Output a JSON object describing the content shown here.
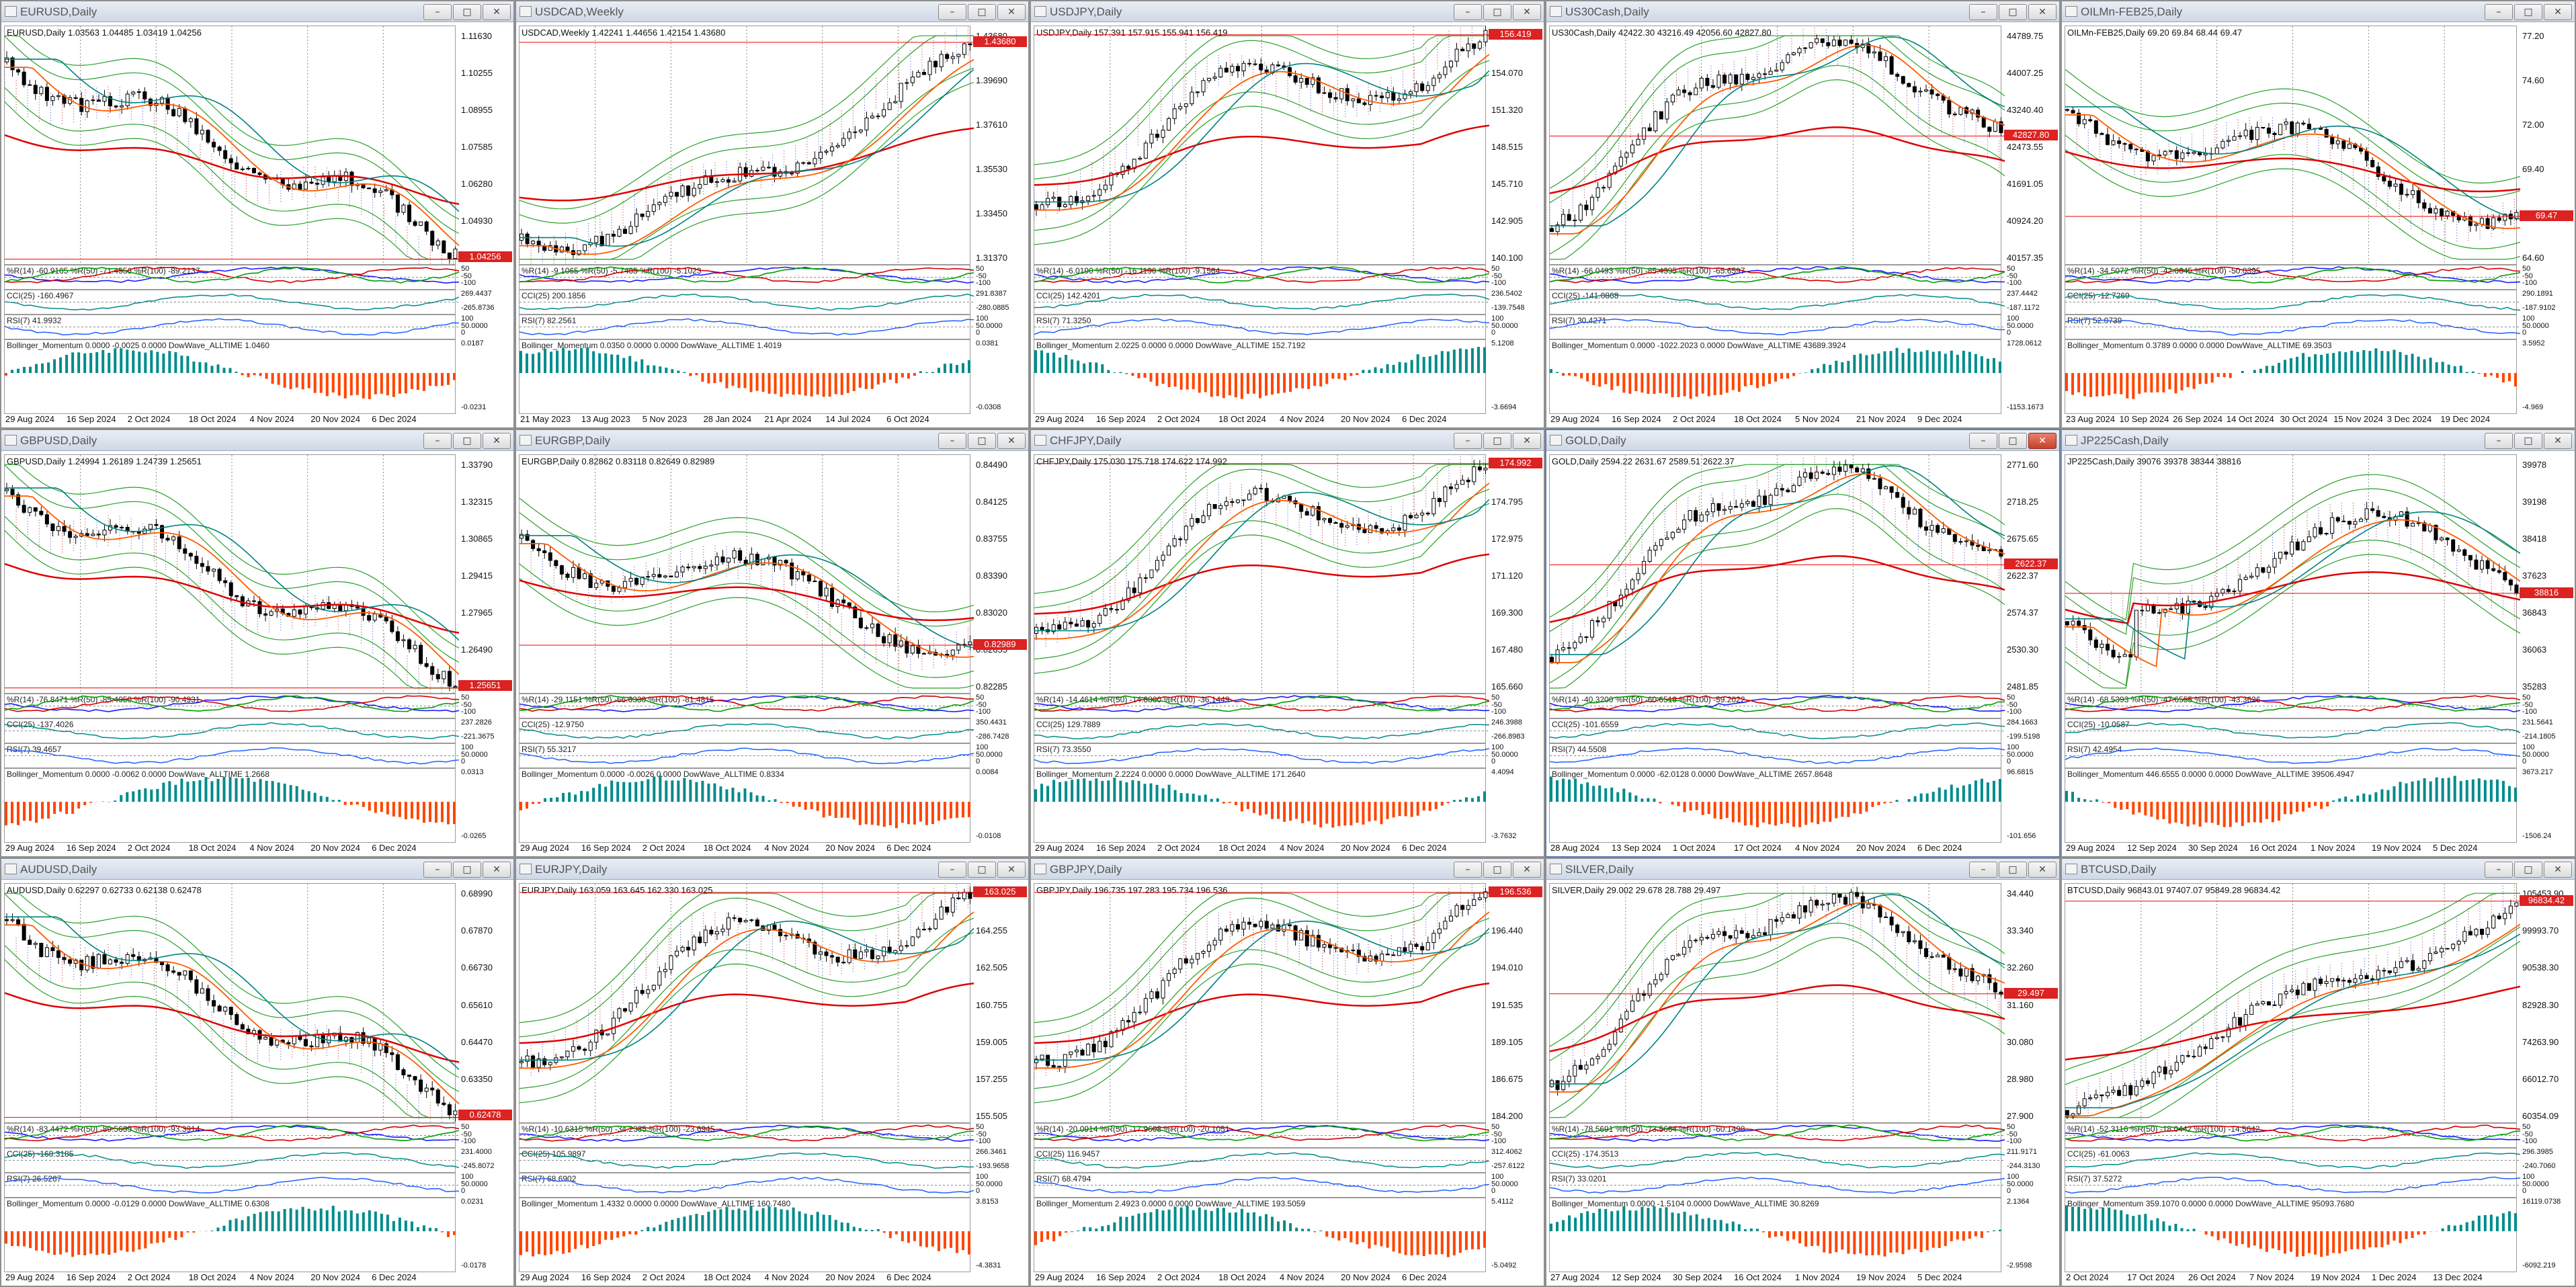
{
  "windows": [
    {
      "title": "EURUSD,Daily",
      "header": "EURUSD,Daily  1.03563 1.04485 1.03419 1.04256",
      "color": "#d22",
      "priceTag": "1.04256",
      "yLabels": [
        "1.11630",
        "1.10255",
        "1.08955",
        "1.07585",
        "1.06280",
        "1.04930",
        "1.03580"
      ],
      "ind1": "%R(14) -60.9165  %R(50) -71.4556  %R(100) -89.2137",
      "ind1Axis": [
        "50",
        "-50",
        "-100"
      ],
      "ind2": "CCI(25) -160.4967",
      "ind2Axis": [
        "269.4437",
        "-265.8736"
      ],
      "ind3": "RSI(7) 41.9932",
      "ind3Axis": [
        "100",
        "50.0000",
        "0"
      ],
      "ind4": "Bollinger_Momentum 0.0000 -0.0025 0.0000  DowWave_ALLTIME 1.0460",
      "ind4Axis": [
        "0.0187",
        "-0.0231"
      ],
      "xLabels": [
        "29 Aug 2024",
        "16 Sep 2024",
        "2 Oct 2024",
        "18 Oct 2024",
        "4 Nov 2024",
        "20 Nov 2024",
        "6 Dec 2024"
      ],
      "trend": "down",
      "active": false
    },
    {
      "title": "USDCAD,Weekly",
      "header": "USDCAD,Weekly  1.42241 1.44656 1.42154 1.43680",
      "color": "#d22",
      "priceTag": "1.43680",
      "yLabels": [
        "1.43680",
        "1.39690",
        "1.37610",
        "1.35530",
        "1.33450",
        "1.31370"
      ],
      "ind1": "%R(14) -9.1065  %R(50) -5.7485  %R(100) -5.1023",
      "ind1Axis": [
        "50",
        "-50",
        "-100"
      ],
      "ind2": "CCI(25) 200.1856",
      "ind2Axis": [
        "291.8387",
        "-280.0885"
      ],
      "ind3": "RSI(7) 82.2561",
      "ind3Axis": [
        "100",
        "50.0000",
        "0"
      ],
      "ind4": "Bollinger_Momentum 0.0350 0.0000 0.0000  DowWave_ALLTIME 1.4019",
      "ind4Axis": [
        "0.0381",
        "-0.0308"
      ],
      "xLabels": [
        "21 May 2023",
        "13 Aug 2023",
        "5 Nov 2023",
        "28 Jan 2024",
        "21 Apr 2024",
        "14 Jul 2024",
        "6 Oct 2024"
      ],
      "trend": "up",
      "active": false
    },
    {
      "title": "USDJPY,Daily",
      "header": "USDJPY,Daily  157.391 157.915 155.941 156.419",
      "color": "#d22",
      "priceTag": "156.419",
      "yLabels": [
        "157.890",
        "154.070",
        "151.320",
        "148.515",
        "145.710",
        "142.905",
        "140.100"
      ],
      "ind1": "%R(14) -6.0190  %R(50) -16.1190  %R(100) -9.1564",
      "ind1Axis": [
        "50",
        "-50",
        "-100"
      ],
      "ind2": "CCI(25) 142.4201",
      "ind2Axis": [
        "236.5402",
        "-139.7548"
      ],
      "ind3": "RSI(7) 71.3250",
      "ind3Axis": [
        "100",
        "50.0000",
        "0"
      ],
      "ind4": "Bollinger_Momentum 2.0225 0.0000 0.0000  DowWave_ALLTIME 152.7192",
      "ind4Axis": [
        "5.1208",
        "-3.6694"
      ],
      "xLabels": [
        "29 Aug 2024",
        "16 Sep 2024",
        "2 Oct 2024",
        "18 Oct 2024",
        "4 Nov 2024",
        "20 Nov 2024",
        "6 Dec 2024"
      ],
      "trend": "upmid",
      "active": false
    },
    {
      "title": "US30Cash,Daily",
      "header": "US30Cash,Daily  42422.30 43216.49 42056.60 42827.80",
      "color": "#d22",
      "priceTag": "42827.80",
      "yLabels": [
        "44789.75",
        "44007.25",
        "43240.40",
        "42473.55",
        "41691.05",
        "40924.20",
        "40157.35"
      ],
      "ind1": "%R(14) -66.0493  %R(50) -85.4395  %R(100) -65.6597",
      "ind1Axis": [
        "50",
        "-50",
        "-100"
      ],
      "ind2": "CCI(25) -141.0868",
      "ind2Axis": [
        "237.4442",
        "-187.1172"
      ],
      "ind3": "RSI(7) 30.4271",
      "ind3Axis": [
        "100",
        "50.0000",
        "0"
      ],
      "ind4": "Bollinger_Momentum 0.0000 -1022.2023 0.0000  DowWave_ALLTIME 43689.3924",
      "ind4Axis": [
        "1728.0612",
        "-1153.1673"
      ],
      "xLabels": [
        "29 Aug 2024",
        "16 Sep 2024",
        "2 Oct 2024",
        "18 Oct 2024",
        "5 Nov 2024",
        "21 Nov 2024",
        "9 Dec 2024"
      ],
      "trend": "upthendown",
      "active": false
    },
    {
      "title": "OILMn-FEB25,Daily",
      "header": "OILMn-FEB25,Daily  69.20 69.84 68.44 69.47",
      "color": "#d22",
      "priceTag": "69.47",
      "yLabels": [
        "77.20",
        "74.60",
        "72.00",
        "69.40",
        "66.70",
        "64.60"
      ],
      "ind1": "%R(14) -34.5072  %R(50) -42.6645  %R(100) -50.0395",
      "ind1Axis": [
        "50",
        "-50",
        "-100"
      ],
      "ind2": "CCI(25) -12.7269",
      "ind2Axis": [
        "290.1891",
        "-187.9102"
      ],
      "ind3": "RSI(7) 52.0739",
      "ind3Axis": [
        "100",
        "50.0000",
        "0"
      ],
      "ind4": "Bollinger_Momentum 0.3789 0.0000 0.0000  DowWave_ALLTIME 69.3503",
      "ind4Axis": [
        "3.5952",
        "-4.969"
      ],
      "xLabels": [
        "23 Aug 2024",
        "10 Sep 2024",
        "26 Sep 2024",
        "14 Oct 2024",
        "30 Oct 2024",
        "15 Nov 2024",
        "3 Dec 2024",
        "19 Dec 2024"
      ],
      "trend": "down2",
      "active": false
    },
    {
      "title": "GBPUSD,Daily",
      "header": "GBPUSD,Daily  1.24994 1.26189 1.24739 1.25651",
      "color": "#d22",
      "priceTag": "1.25651",
      "yLabels": [
        "1.33790",
        "1.32315",
        "1.30865",
        "1.29415",
        "1.27965",
        "1.26490",
        "1.25040"
      ],
      "ind1": "%R(14) -76.8471  %R(50) -85.4050  %R(100) -90.4931",
      "ind1Axis": [
        "50",
        "-50",
        "-100"
      ],
      "ind2": "CCI(25) -137.4026",
      "ind2Axis": [
        "237.2826",
        "-221.3675"
      ],
      "ind3": "RSI(7) 39.4657",
      "ind3Axis": [
        "100",
        "50.0000",
        "0"
      ],
      "ind4": "Bollinger_Momentum 0.0000 -0.0062 0.0000  DowWave_ALLTIME 1.2668",
      "ind4Axis": [
        "0.0313",
        "-0.0265"
      ],
      "xLabels": [
        "29 Aug 2024",
        "16 Sep 2024",
        "2 Oct 2024",
        "18 Oct 2024",
        "4 Nov 2024",
        "20 Nov 2024",
        "6 Dec 2024"
      ],
      "trend": "down",
      "active": false
    },
    {
      "title": "EURGBP,Daily",
      "header": "EURGBP,Daily  0.82862 0.83118 0.82649 0.82989",
      "color": "#d22",
      "priceTag": "0.82989",
      "yLabels": [
        "0.84490",
        "0.84125",
        "0.83755",
        "0.83390",
        "0.83020",
        "0.82655",
        "0.82285"
      ],
      "ind1": "%R(14) -29.1151  %R(50) -66.6330  %R(100) -81.4815",
      "ind1Axis": [
        "50",
        "-50",
        "-100"
      ],
      "ind2": "CCI(25) -12.9750",
      "ind2Axis": [
        "350.4431",
        "-286.7428"
      ],
      "ind3": "RSI(7) 55.3217",
      "ind3Axis": [
        "100",
        "50.0000",
        "0"
      ],
      "ind4": "Bollinger_Momentum 0.0000 -0.0026 0.0000  DowWave_ALLTIME 0.8334",
      "ind4Axis": [
        "0.0084",
        "-0.0108"
      ],
      "xLabels": [
        "29 Aug 2024",
        "16 Sep 2024",
        "2 Oct 2024",
        "18 Oct 2024",
        "4 Nov 2024",
        "20 Nov 2024",
        "6 Dec 2024"
      ],
      "trend": "down2",
      "active": false
    },
    {
      "title": "CHFJPY,Daily",
      "header": "CHFJPY,Daily  175.030 175.718 174.622 174.992",
      "color": "#d22",
      "priceTag": "174.992",
      "yLabels": [
        "176.615",
        "174.795",
        "172.975",
        "171.120",
        "169.300",
        "167.480",
        "165.660"
      ],
      "ind1": "%R(14) -14.4614  %R(50) -14.8800  %R(100) -36.1449",
      "ind1Axis": [
        "50",
        "-50",
        "-100"
      ],
      "ind2": "CCI(25) 129.7889",
      "ind2Axis": [
        "246.3988",
        "-266.8983"
      ],
      "ind3": "RSI(7) 73.3550",
      "ind3Axis": [
        "100",
        "50.0000",
        "0"
      ],
      "ind4": "Bollinger_Momentum 2.2224 0.0000 0.0000  DowWave_ALLTIME 171.2640",
      "ind4Axis": [
        "4.4094",
        "-3.7632"
      ],
      "xLabels": [
        "29 Aug 2024",
        "16 Sep 2024",
        "2 Oct 2024",
        "18 Oct 2024",
        "4 Nov 2024",
        "20 Nov 2024",
        "6 Dec 2024"
      ],
      "trend": "upmid",
      "active": false
    },
    {
      "title": "GOLD,Daily",
      "header": "GOLD,Daily  2594.22 2631.67 2589.51 2622.37",
      "color": "#d22",
      "priceTag": "2622.37",
      "yLabels": [
        "2771.60",
        "2718.25",
        "2675.65",
        "2622.37",
        "2574.37",
        "2530.30",
        "2481.85"
      ],
      "ind1": "%R(14) -40.3200  %R(50) -60.6519  %R(100) -59.2022",
      "ind1Axis": [
        "50",
        "-50",
        "-100"
      ],
      "ind2": "CCI(25) -101.6559",
      "ind2Axis": [
        "284.1663",
        "-199.5198"
      ],
      "ind3": "RSI(7) 44.5508",
      "ind3Axis": [
        "100",
        "50.0000",
        "0"
      ],
      "ind4": "Bollinger_Momentum 0.0000 -62.0128 0.0000  DowWave_ALLTIME 2657.8648",
      "ind4Axis": [
        "96.6815",
        "-101.656"
      ],
      "xLabels": [
        "28 Aug 2024",
        "13 Sep 2024",
        "1 Oct 2024",
        "17 Oct 2024",
        "4 Nov 2024",
        "20 Nov 2024",
        "6 Dec 2024"
      ],
      "trend": "upthendown",
      "active": true
    },
    {
      "title": "JP225Cash,Daily",
      "header": "JP225Cash,Daily  39076 39378 38344 38816",
      "color": "#d22",
      "priceTag": "38816",
      "yLabels": [
        "39978",
        "39198",
        "38418",
        "37623",
        "36843",
        "36063",
        "35283"
      ],
      "ind1": "%R(14) -68.5393  %R(50) -47.6555  %R(100) -43.3626",
      "ind1Axis": [
        "50",
        "-50",
        "-100"
      ],
      "ind2": "CCI(25) -10.0587",
      "ind2Axis": [
        "231.5641",
        "-214.1805"
      ],
      "ind3": "RSI(7) 42.4954",
      "ind3Axis": [
        "100",
        "50.0000",
        "0"
      ],
      "ind4": "Bollinger_Momentum 446.6555 0.0000 0.0000  DowWave_ALLTIME 39506.4947",
      "ind4Axis": [
        "3673.217",
        "-1506.24"
      ],
      "xLabels": [
        "29 Aug 2024",
        "12 Sep 2024",
        "30 Sep 2024",
        "16 Oct 2024",
        "1 Nov 2024",
        "19 Nov 2024",
        "5 Dec 2024"
      ],
      "trend": "flat",
      "active": false
    },
    {
      "title": "AUDUSD,Daily",
      "header": "AUDUSD,Daily  0.62297 0.62733 0.62138 0.62478",
      "color": "#d22",
      "priceTag": "0.62478",
      "yLabels": [
        "0.68990",
        "0.67870",
        "0.66730",
        "0.65610",
        "0.64470",
        "0.63350",
        "0.62210"
      ],
      "ind1": "%R(14) -83.4472  %R(50) -89.5639  %R(100) -93.3914",
      "ind1Axis": [
        "50",
        "-50",
        "-100"
      ],
      "ind2": "CCI(25) -168.3185",
      "ind2Axis": [
        "231.4000",
        "-245.8072"
      ],
      "ind3": "RSI(7) 26.5267",
      "ind3Axis": [
        "100",
        "50.0000",
        "0"
      ],
      "ind4": "Bollinger_Momentum 0.0000 -0.0129 0.0000  DowWave_ALLTIME 0.6308",
      "ind4Axis": [
        "0.0231",
        "-0.0178"
      ],
      "xLabels": [
        "29 Aug 2024",
        "16 Sep 2024",
        "2 Oct 2024",
        "18 Oct 2024",
        "4 Nov 2024",
        "20 Nov 2024",
        "6 Dec 2024"
      ],
      "trend": "down",
      "active": false
    },
    {
      "title": "EURJPY,Daily",
      "header": "EURJPY,Daily  163.059 163.645 162.330 163.025",
      "color": "#d22",
      "priceTag": "163.025",
      "yLabels": [
        "166.040",
        "164.255",
        "162.505",
        "160.755",
        "159.005",
        "157.255",
        "155.505"
      ],
      "ind1": "%R(14) -10.6315  %R(50) -34.2335  %R(100) -23.6945",
      "ind1Axis": [
        "50",
        "-50",
        "-100"
      ],
      "ind2": "CCI(25) 105.9897",
      "ind2Axis": [
        "266.3461",
        "-193.9658"
      ],
      "ind3": "RSI(7) 68.6902",
      "ind3Axis": [
        "100",
        "50.0000",
        "0"
      ],
      "ind4": "Bollinger_Momentum 1.4332 0.0000 0.0000  DowWave_ALLTIME 160.7480",
      "ind4Axis": [
        "3.8153",
        "-4.3831"
      ],
      "xLabels": [
        "29 Aug 2024",
        "16 Sep 2024",
        "2 Oct 2024",
        "18 Oct 2024",
        "4 Nov 2024",
        "20 Nov 2024",
        "6 Dec 2024"
      ],
      "trend": "upmid",
      "active": false
    },
    {
      "title": "GBPJPY,Daily",
      "header": "GBPJPY,Daily  196.735 197.283 195.734 196.536",
      "color": "#d22",
      "priceTag": "196.536",
      "yLabels": [
        "198.870",
        "196.440",
        "194.010",
        "191.535",
        "189.105",
        "186.675",
        "184.200"
      ],
      "ind1": "%R(14) -20.0914  %R(50) -17.9608  %R(100) -20.1051",
      "ind1Axis": [
        "50",
        "-50",
        "-100"
      ],
      "ind2": "CCI(25) 116.9457",
      "ind2Axis": [
        "312.4062",
        "-257.6122"
      ],
      "ind3": "RSI(7) 68.4794",
      "ind3Axis": [
        "100",
        "50.0000",
        "0"
      ],
      "ind4": "Bollinger_Momentum 2.4923 0.0000 0.0000  DowWave_ALLTIME 193.5059",
      "ind4Axis": [
        "5.4112",
        "-5.0492"
      ],
      "xLabels": [
        "29 Aug 2024",
        "16 Sep 2024",
        "2 Oct 2024",
        "18 Oct 2024",
        "4 Nov 2024",
        "20 Nov 2024",
        "6 Dec 2024"
      ],
      "trend": "upmid",
      "active": false
    },
    {
      "title": "SILVER,Daily",
      "header": "SILVER,Daily  29.002 29.678 28.788 29.497",
      "color": "#d22",
      "priceTag": "29.497",
      "yLabels": [
        "34.440",
        "33.340",
        "32.260",
        "31.160",
        "30.080",
        "28.980",
        "27.900"
      ],
      "ind1": "%R(14) -78.5691  %R(50) -73.5664  %R(100) -60.1498",
      "ind1Axis": [
        "50",
        "-50",
        "-100"
      ],
      "ind2": "CCI(25) -174.3513",
      "ind2Axis": [
        "211.9171",
        "-244.3130"
      ],
      "ind3": "RSI(7) 33.0201",
      "ind3Axis": [
        "100",
        "50.0000",
        "0"
      ],
      "ind4": "Bollinger_Momentum 0.0000 -1.5104 0.0000  DowWave_ALLTIME 30.8269",
      "ind4Axis": [
        "2.1364",
        "-2.9598"
      ],
      "xLabels": [
        "27 Aug 2024",
        "12 Sep 2024",
        "30 Sep 2024",
        "16 Oct 2024",
        "1 Nov 2024",
        "19 Nov 2024",
        "5 Dec 2024"
      ],
      "trend": "upthendown",
      "active": false
    },
    {
      "title": "BTCUSD,Daily",
      "header": "BTCUSD,Daily  96843.01 97407.07 95849.28 96834.42",
      "color": "#d22",
      "priceTag": "96834.42",
      "yLabels": [
        "105453.90",
        "99993.70",
        "90538.30",
        "82928.30",
        "74263.90",
        "66012.70",
        "60354.09"
      ],
      "ind1": "%R(14) -52.3116  %R(50) -18.0442  %R(100) -14.5642",
      "ind1Axis": [
        "50",
        "-50",
        "-100"
      ],
      "ind2": "CCI(25) -61.0063",
      "ind2Axis": [
        "296.3985",
        "-240.7060"
      ],
      "ind3": "RSI(7) 37.5272",
      "ind3Axis": [
        "100",
        "50.0000",
        "0"
      ],
      "ind4": "Bollinger_Momentum 359.1070 0.0000 0.0000  DowWave_ALLTIME 95093.7680",
      "ind4Axis": [
        "16119.0738",
        "-6092.219"
      ],
      "xLabels": [
        "2 Oct 2024",
        "17 Oct 2024",
        "26 Oct 2024",
        "7 Nov 2024",
        "19 Nov 2024",
        "1 Dec 2024",
        "13 Dec 2024"
      ],
      "trend": "upstrong",
      "active": false
    }
  ],
  "buttons": {
    "minimize": "–",
    "restore": "□",
    "close": "✕"
  },
  "colors": {
    "bull": "#000000",
    "bear": "#000000",
    "ma_long": "#e00000",
    "ma_mid": "#ff5a00",
    "ma_fast": "#008080",
    "band": "#2aa02a",
    "ichi_a": "#b22222",
    "ichi_b": "#1e1ee0",
    "wr1": "#1a1aff",
    "wr2": "#d40000",
    "wr3": "#00a000",
    "cci": "#008b8b",
    "rsi": "#2060ff",
    "hist_up": "#008b8b",
    "hist_dn": "#ff4500"
  }
}
